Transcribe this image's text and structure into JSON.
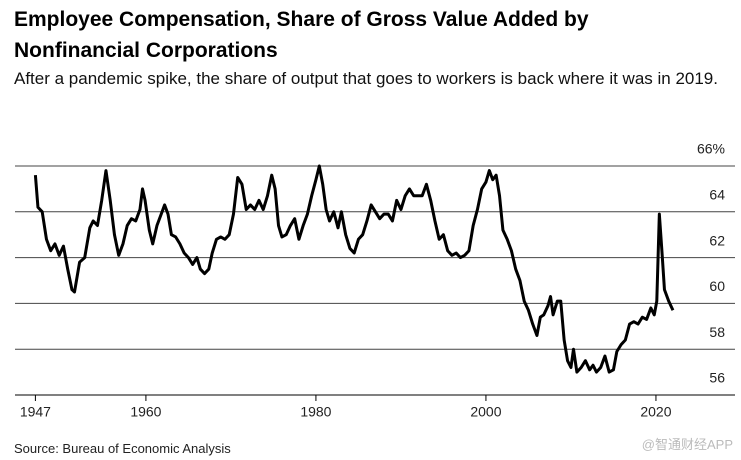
{
  "chart_data": {
    "type": "line",
    "title": "Employee Compensation, Share of Gross Value Added by Nonfinancial Corporations",
    "subtitle": "After a pandemic spike, the share of output that goes to workers is back where it was in 2019.",
    "source": "Source: Bureau of Economic Analysis",
    "watermark": "@智通财经APP",
    "xlim": [
      1944.6,
      2029.3
    ],
    "xticks": [
      1947,
      1960,
      1980,
      2000,
      2020
    ],
    "ylim": [
      56,
      66
    ],
    "yticks": [
      56,
      58,
      60,
      62,
      64,
      {
        "value": 66,
        "label": "66%"
      }
    ],
    "grid": true,
    "series": [
      {
        "name": null,
        "color": "#000000",
        "x": [
          1947.0,
          1947.3,
          1947.8,
          1948.3,
          1948.8,
          1949.3,
          1949.8,
          1950.3,
          1950.8,
          1951.3,
          1951.6,
          1952.2,
          1952.8,
          1953.4,
          1953.8,
          1954.3,
          1954.8,
          1955.3,
          1955.8,
          1956.3,
          1956.8,
          1957.3,
          1957.8,
          1958.3,
          1958.8,
          1959.3,
          1959.6,
          1959.9,
          1960.4,
          1960.8,
          1961.3,
          1961.8,
          1962.2,
          1962.6,
          1963.0,
          1963.5,
          1964.0,
          1964.5,
          1965.0,
          1965.5,
          1966.0,
          1966.4,
          1966.9,
          1967.4,
          1967.8,
          1968.3,
          1968.8,
          1969.3,
          1969.8,
          1970.3,
          1970.8,
          1971.3,
          1971.8,
          1972.3,
          1972.8,
          1973.3,
          1973.8,
          1974.3,
          1974.8,
          1975.2,
          1975.6,
          1976.0,
          1976.5,
          1977.0,
          1977.5,
          1978.0,
          1978.5,
          1979.0,
          1979.5,
          1980.0,
          1980.4,
          1980.8,
          1981.2,
          1981.6,
          1982.1,
          1982.6,
          1983.0,
          1983.5,
          1984.0,
          1984.5,
          1985.0,
          1985.5,
          1986.0,
          1986.5,
          1987.0,
          1987.5,
          1988.0,
          1988.5,
          1989.0,
          1989.5,
          1990.0,
          1990.5,
          1991.0,
          1991.5,
          1992.0,
          1992.5,
          1993.0,
          1993.5,
          1994.0,
          1994.5,
          1995.0,
          1995.5,
          1996.0,
          1996.5,
          1997.0,
          1997.5,
          1998.0,
          1998.5,
          1999.0,
          1999.5,
          2000.0,
          2000.4,
          2000.8,
          2001.2,
          2001.6,
          2002.0,
          2002.5,
          2003.0,
          2003.5,
          2004.0,
          2004.5,
          2005.0,
          2005.5,
          2006.0,
          2006.4,
          2006.8,
          2007.3,
          2007.6,
          2007.9,
          2008.4,
          2008.8,
          2009.2,
          2009.6,
          2010.0,
          2010.3,
          2010.7,
          2011.2,
          2011.7,
          2012.2,
          2012.6,
          2013.0,
          2013.5,
          2014.0,
          2014.5,
          2015.0,
          2015.4,
          2015.9,
          2016.4,
          2016.9,
          2017.4,
          2017.9,
          2018.4,
          2018.9,
          2019.4,
          2019.8,
          2020.1,
          2020.4,
          2020.7,
          2021.0,
          2021.5,
          2022.0
        ],
        "values": [
          65.6,
          64.2,
          64.0,
          62.8,
          62.3,
          62.6,
          62.1,
          62.5,
          61.5,
          60.6,
          60.5,
          61.8,
          62.0,
          63.3,
          63.6,
          63.4,
          64.5,
          65.8,
          64.5,
          63.0,
          62.1,
          62.6,
          63.4,
          63.7,
          63.6,
          64.1,
          65.0,
          64.5,
          63.2,
          62.6,
          63.4,
          63.9,
          64.3,
          63.9,
          63.0,
          62.9,
          62.6,
          62.2,
          62.0,
          61.7,
          62.0,
          61.5,
          61.3,
          61.5,
          62.2,
          62.8,
          62.9,
          62.8,
          63.0,
          63.9,
          65.5,
          65.2,
          64.1,
          64.3,
          64.1,
          64.5,
          64.1,
          64.7,
          65.6,
          65.0,
          63.4,
          62.9,
          63.0,
          63.4,
          63.7,
          62.8,
          63.4,
          63.9,
          64.7,
          65.4,
          66.0,
          65.2,
          64.1,
          63.6,
          64.0,
          63.3,
          64.0,
          63.0,
          62.4,
          62.2,
          62.8,
          63.0,
          63.6,
          64.3,
          64.0,
          63.7,
          63.9,
          63.9,
          63.6,
          64.5,
          64.1,
          64.7,
          65.0,
          64.7,
          64.7,
          64.7,
          65.2,
          64.5,
          63.6,
          62.8,
          63.0,
          62.3,
          62.1,
          62.2,
          62.0,
          62.1,
          62.3,
          63.4,
          64.1,
          65.0,
          65.3,
          65.8,
          65.4,
          65.6,
          64.7,
          63.2,
          62.8,
          62.3,
          61.5,
          61.0,
          60.1,
          59.7,
          59.1,
          58.6,
          59.4,
          59.5,
          59.9,
          60.3,
          59.5,
          60.1,
          60.1,
          58.4,
          57.5,
          57.2,
          58.0,
          57.0,
          57.2,
          57.5,
          57.1,
          57.3,
          57.0,
          57.2,
          57.7,
          57.0,
          57.1,
          57.9,
          58.2,
          58.4,
          59.1,
          59.2,
          59.1,
          59.4,
          59.3,
          59.8,
          59.5,
          60.1,
          63.9,
          62.3,
          60.6,
          60.1,
          59.7
        ]
      }
    ]
  }
}
